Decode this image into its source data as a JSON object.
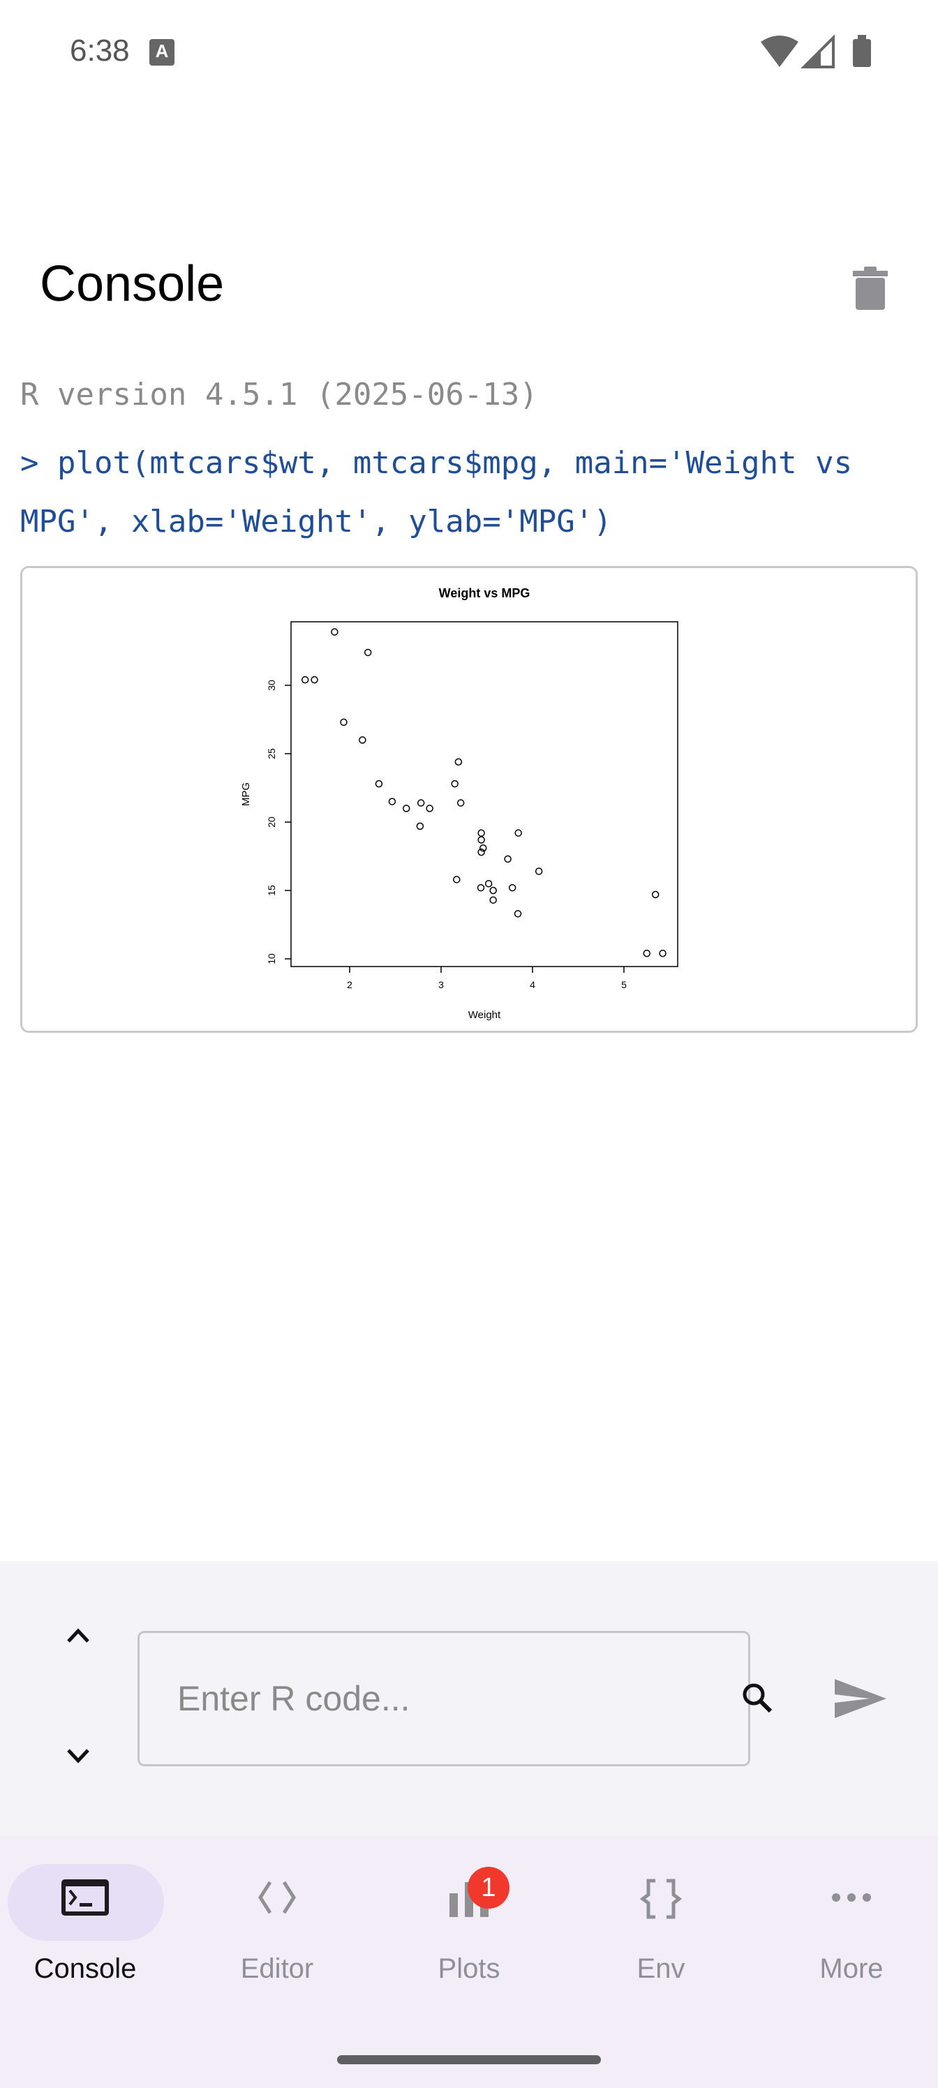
{
  "status_bar": {
    "time": "6:38",
    "notification_icon": "A",
    "icons": [
      "wifi-icon",
      "signal-icon",
      "battery-icon"
    ]
  },
  "header": {
    "title": "Console",
    "clear_icon": "trash-icon"
  },
  "console": {
    "version_line": "R version 4.5.1 (2025-06-13)",
    "command_line": "> plot(mtcars$wt, mtcars$mpg, main='Weight vs MPG', xlab='Weight', ylab='MPG')",
    "colors": {
      "output": "#8a8a8a",
      "command": "#1f4e96"
    }
  },
  "chart_data": {
    "type": "scatter",
    "title": "Weight vs MPG",
    "xlabel": "Weight",
    "ylabel": "MPG",
    "xlim": [
      1.4,
      5.6
    ],
    "ylim": [
      9.5,
      34.8
    ],
    "xticks": [
      "2",
      "3",
      "4",
      "5"
    ],
    "yticks": [
      "10",
      "15",
      "20",
      "25",
      "30"
    ],
    "grid": false,
    "x": [
      2.62,
      2.875,
      2.32,
      3.215,
      3.44,
      3.46,
      3.57,
      3.19,
      3.15,
      3.44,
      3.44,
      4.07,
      3.73,
      3.78,
      5.25,
      5.424,
      5.345,
      2.2,
      1.615,
      1.835,
      2.465,
      3.52,
      3.435,
      3.84,
      3.845,
      1.935,
      2.14,
      1.513,
      3.17,
      2.77,
      3.57,
      2.78
    ],
    "y": [
      21,
      21,
      22.8,
      21.4,
      18.7,
      18.1,
      14.3,
      24.4,
      22.8,
      19.2,
      17.8,
      16.4,
      17.3,
      15.2,
      10.4,
      10.4,
      14.7,
      32.4,
      30.4,
      33.9,
      21.5,
      15.5,
      15.2,
      13.3,
      19.2,
      27.3,
      26,
      30.4,
      15.8,
      19.7,
      15,
      21.4
    ]
  },
  "input": {
    "placeholder": "Enter R code...",
    "value": ""
  },
  "nav": {
    "items": [
      {
        "label": "Console",
        "icon": "terminal-icon",
        "active": true
      },
      {
        "label": "Editor",
        "icon": "code-icon"
      },
      {
        "label": "Plots",
        "icon": "bar-chart-icon",
        "badge": "1"
      },
      {
        "label": "Env",
        "icon": "braces-icon"
      },
      {
        "label": "More",
        "icon": "more-horiz-icon"
      }
    ]
  }
}
